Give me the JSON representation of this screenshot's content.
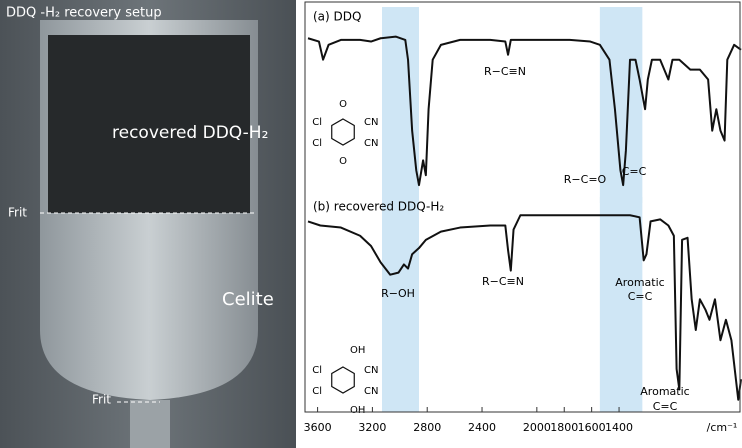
{
  "photo": {
    "title": "DDQ -H₂ recovery setup",
    "labels": [
      "recovered DDQ-H₂",
      "Frit",
      "Celite",
      "Frit"
    ]
  },
  "chart_data": [
    {
      "type": "line",
      "title": "(a) DDQ",
      "xlim": [
        3670,
        510
      ],
      "ylim": [
        0,
        100
      ],
      "x": [
        3670,
        3590,
        3560,
        3520,
        3430,
        3290,
        3210,
        3140,
        3030,
        2960,
        2940,
        2910,
        2880,
        2860,
        2830,
        2810,
        2790,
        2760,
        2700,
        2560,
        2340,
        2230,
        2210,
        2190,
        1980,
        1760,
        1610,
        1540,
        1470,
        1430,
        1390,
        1370,
        1350,
        1320,
        1280,
        1250,
        1210,
        1190,
        1160,
        1100,
        1040,
        1010,
        960,
        880,
        810,
        750,
        720,
        690,
        660,
        630,
        610,
        560,
        510
      ],
      "series": [
        {
          "color": "#111111",
          "values": [
            95,
            93,
            82,
            91,
            94,
            94,
            93,
            95,
            96,
            94,
            82,
            39,
            15,
            6,
            21,
            12,
            52,
            82,
            91,
            94,
            94,
            93,
            85,
            94,
            94,
            94,
            93,
            91,
            82,
            52,
            15,
            6,
            27,
            82,
            82,
            70,
            52,
            70,
            82,
            82,
            70,
            82,
            82,
            76,
            76,
            70,
            39,
            52,
            39,
            33,
            82,
            91,
            88
          ]
        }
      ],
      "bands": [
        [
          3130,
          2860
        ],
        [
          1540,
          1230
        ]
      ],
      "band_color": "#cfe6f5",
      "annotations": [
        "R−C≡N",
        "R−C=O",
        "C=C"
      ],
      "structure_labels": [
        "O",
        "O",
        "Cl",
        "Cl",
        "CN",
        "CN"
      ]
    },
    {
      "type": "line",
      "title": "(b) recovered DDQ-H₂",
      "xlim": [
        3670,
        510
      ],
      "ylim": [
        0,
        100
      ],
      "xticks": [
        3600,
        3200,
        2800,
        2400,
        2000,
        1800,
        1600,
        1400
      ],
      "xlabel": "/cm⁻¹",
      "x": [
        3670,
        3580,
        3430,
        3290,
        3210,
        3140,
        3070,
        3010,
        2970,
        2940,
        2910,
        2860,
        2810,
        2700,
        2560,
        2340,
        2230,
        2210,
        2190,
        2170,
        2120,
        1980,
        1760,
        1540,
        1320,
        1250,
        1220,
        1200,
        1170,
        1100,
        1040,
        1000,
        980,
        960,
        940,
        900,
        870,
        840,
        810,
        770,
        740,
        700,
        660,
        620,
        580,
        530,
        510
      ],
      "series": [
        {
          "color": "#111111",
          "values": [
            92,
            90,
            89,
            85,
            80,
            72,
            66,
            67,
            71,
            69,
            76,
            79,
            83,
            87,
            89,
            90,
            90,
            78,
            68,
            88,
            95,
            95,
            95,
            95,
            95,
            94,
            73,
            76,
            92,
            93,
            90,
            85,
            20,
            10,
            83,
            84,
            54,
            39,
            54,
            49,
            44,
            54,
            34,
            44,
            34,
            5,
            15
          ]
        }
      ],
      "bands": [
        [
          3130,
          2860
        ],
        [
          1540,
          1230
        ]
      ],
      "band_color": "#cfe6f5",
      "annotations": [
        "R−OH",
        "R−C≡N",
        "Aromatic",
        "C=C",
        "Aromatic",
        "C=C"
      ],
      "structure_labels": [
        "OH",
        "OH",
        "Cl",
        "Cl",
        "CN",
        "CN"
      ]
    }
  ]
}
